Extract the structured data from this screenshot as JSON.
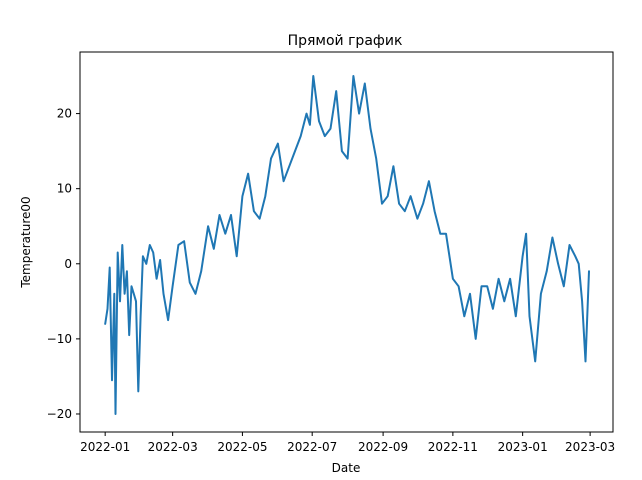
{
  "chart_data": {
    "type": "line",
    "title": "Прямой график",
    "xlabel": "Date",
    "ylabel": "Temperature00",
    "x_tick_labels": [
      "2022-01",
      "2022-03",
      "2022-05",
      "2022-07",
      "2022-09",
      "2022-11",
      "2023-01",
      "2023-03"
    ],
    "x_ticks": [
      "2022-01-01",
      "2022-03-01",
      "2022-05-01",
      "2022-07-01",
      "2022-09-01",
      "2022-11-01",
      "2023-01-01",
      "2023-03-01"
    ],
    "y_tick_labels": [
      "−20",
      "−10",
      "0",
      "10",
      "20"
    ],
    "y_ticks": [
      -20,
      -10,
      0,
      10,
      20
    ],
    "xlim": [
      "2021-12-10",
      "2023-03-21"
    ],
    "ylim": [
      -22.4,
      28.2
    ],
    "grid": false,
    "series": [
      {
        "color": "#1f77b4",
        "x": [
          "2022-01-01",
          "2022-01-03",
          "2022-01-05",
          "2022-01-07",
          "2022-01-09",
          "2022-01-10",
          "2022-01-12",
          "2022-01-14",
          "2022-01-16",
          "2022-01-18",
          "2022-01-20",
          "2022-01-22",
          "2022-01-24",
          "2022-01-26",
          "2022-01-28",
          "2022-01-30",
          "2022-02-01",
          "2022-02-03",
          "2022-02-06",
          "2022-02-09",
          "2022-02-12",
          "2022-02-15",
          "2022-02-18",
          "2022-02-21",
          "2022-02-25",
          "2022-03-01",
          "2022-03-06",
          "2022-03-11",
          "2022-03-16",
          "2022-03-21",
          "2022-03-26",
          "2022-04-01",
          "2022-04-06",
          "2022-04-11",
          "2022-04-16",
          "2022-04-21",
          "2022-04-26",
          "2022-05-01",
          "2022-05-06",
          "2022-05-11",
          "2022-05-16",
          "2022-05-21",
          "2022-05-26",
          "2022-06-01",
          "2022-06-06",
          "2022-06-11",
          "2022-06-16",
          "2022-06-21",
          "2022-06-26",
          "2022-06-29",
          "2022-07-02",
          "2022-07-07",
          "2022-07-12",
          "2022-07-17",
          "2022-07-22",
          "2022-07-27",
          "2022-08-01",
          "2022-08-06",
          "2022-08-11",
          "2022-08-16",
          "2022-08-21",
          "2022-08-26",
          "2022-08-31",
          "2022-09-05",
          "2022-09-10",
          "2022-09-15",
          "2022-09-20",
          "2022-09-25",
          "2022-10-01",
          "2022-10-06",
          "2022-10-11",
          "2022-10-16",
          "2022-10-21",
          "2022-10-26",
          "2022-11-01",
          "2022-11-06",
          "2022-11-11",
          "2022-11-16",
          "2022-11-21",
          "2022-11-26",
          "2022-12-01",
          "2022-12-06",
          "2022-12-11",
          "2022-12-16",
          "2022-12-21",
          "2022-12-26",
          "2023-01-01",
          "2023-01-04",
          "2023-01-07",
          "2023-01-12",
          "2023-01-17",
          "2023-01-22",
          "2023-01-27",
          "2023-02-01",
          "2023-02-06",
          "2023-02-11",
          "2023-02-16",
          "2023-02-19",
          "2023-02-22",
          "2023-02-25",
          "2023-02-28"
        ],
        "y": [
          -8,
          -6,
          -0.5,
          -15.5,
          -4,
          -20,
          1.5,
          -5,
          2.5,
          -4,
          -1,
          -9.5,
          -3,
          -4,
          -5,
          -17,
          -7,
          1,
          0,
          2.5,
          1.5,
          -2,
          0.5,
          -4,
          -7.5,
          -3,
          2.5,
          3,
          -2.5,
          -4,
          -1,
          5,
          2,
          6.5,
          4,
          6.5,
          1,
          9,
          12,
          7,
          6,
          9,
          14,
          16,
          11,
          13,
          15,
          17,
          20,
          18.5,
          25,
          19,
          17,
          18,
          23,
          15,
          14,
          25,
          20,
          24,
          18,
          14,
          8,
          9,
          13,
          8,
          7,
          9,
          6,
          8,
          11,
          7,
          4,
          4,
          -2,
          -3,
          -7,
          -4,
          -10,
          -3,
          -3,
          -6,
          -2,
          -5,
          -2,
          -7,
          1,
          4,
          -7,
          -13,
          -4,
          -1,
          3.5,
          0,
          -3,
          2.5,
          1,
          0,
          -5,
          -13,
          -1
        ]
      }
    ]
  }
}
